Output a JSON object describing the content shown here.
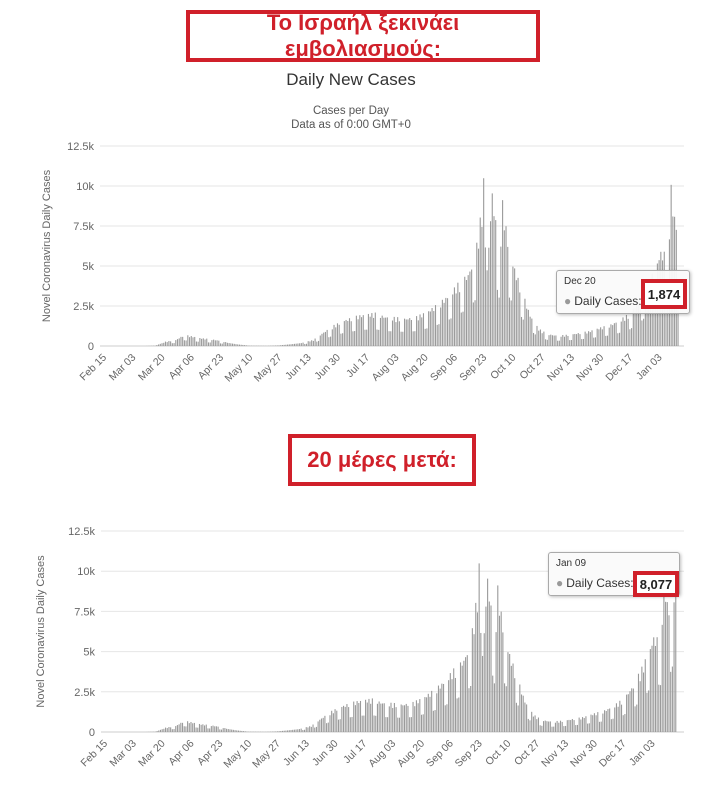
{
  "banners": {
    "top": "Το Ισραήλ ξεκινάει εμβολιασμούς:",
    "middle": "20 μέρες μετά:"
  },
  "chart_top": {
    "title": "Daily New Cases",
    "subtitle_line1": "Cases per Day",
    "subtitle_line2": "Data as of 0:00 GMT+0",
    "tooltip": {
      "date": "Dec 20",
      "label": "Daily Cases:",
      "value": "1,874"
    }
  },
  "chart_bottom": {
    "tooltip": {
      "date": "Jan 09",
      "label": "Daily Cases:",
      "value": "8,077"
    }
  },
  "chart_data": [
    {
      "type": "bar",
      "title": "Daily New Cases",
      "subtitle": "Cases per Day",
      "ylabel": "Novel Coronavirus Daily Cases",
      "ylim": [
        0,
        12500
      ],
      "yticks": [
        "0",
        "2.5k",
        "5k",
        "7.5k",
        "10k",
        "12.5k"
      ],
      "xticks": [
        "Feb 15",
        "Mar 03",
        "Mar 20",
        "Apr 06",
        "Apr 23",
        "May 10",
        "May 27",
        "Jun 13",
        "Jun 30",
        "Jul 17",
        "Aug 03",
        "Aug 20",
        "Sep 06",
        "Sep 23",
        "Oct 10",
        "Oct 27",
        "Nov 13",
        "Nov 30",
        "Dec 17",
        "Jan 03"
      ],
      "x_start": "Feb 15",
      "x_end": "Jan 06",
      "anchors": [
        [
          0,
          0
        ],
        [
          14,
          0
        ],
        [
          24,
          0
        ],
        [
          30,
          20
        ],
        [
          36,
          250
        ],
        [
          42,
          350
        ],
        [
          47,
          650
        ],
        [
          52,
          550
        ],
        [
          57,
          450
        ],
        [
          62,
          400
        ],
        [
          67,
          320
        ],
        [
          72,
          200
        ],
        [
          78,
          100
        ],
        [
          85,
          20
        ],
        [
          95,
          10
        ],
        [
          102,
          40
        ],
        [
          108,
          100
        ],
        [
          115,
          180
        ],
        [
          122,
          350
        ],
        [
          128,
          800
        ],
        [
          134,
          1200
        ],
        [
          140,
          1500
        ],
        [
          146,
          1700
        ],
        [
          152,
          1850
        ],
        [
          158,
          1900
        ],
        [
          164,
          1700
        ],
        [
          170,
          1650
        ],
        [
          176,
          1600
        ],
        [
          182,
          1700
        ],
        [
          188,
          2000
        ],
        [
          194,
          2400
        ],
        [
          200,
          2900
        ],
        [
          206,
          3600
        ],
        [
          212,
          4200
        ],
        [
          216,
          5200
        ],
        [
          220,
          8000
        ],
        [
          222,
          11200
        ],
        [
          224,
          6000
        ],
        [
          226,
          9000
        ],
        [
          230,
          5500
        ],
        [
          232,
          8300
        ],
        [
          236,
          5500
        ],
        [
          240,
          4200
        ],
        [
          244,
          3000
        ],
        [
          248,
          1800
        ],
        [
          253,
          1000
        ],
        [
          258,
          700
        ],
        [
          264,
          600
        ],
        [
          270,
          650
        ],
        [
          276,
          750
        ],
        [
          282,
          850
        ],
        [
          288,
          1050
        ],
        [
          294,
          1200
        ],
        [
          300,
          1500
        ],
        [
          306,
          1900
        ],
        [
          312,
          2700
        ],
        [
          318,
          3900
        ],
        [
          324,
          5500
        ],
        [
          328,
          5300
        ],
        [
          330,
          9200
        ],
        [
          332,
          7500
        ],
        [
          334,
          6800
        ]
      ],
      "tooltip": {
        "date": "Dec 20",
        "value": 1874
      }
    },
    {
      "type": "bar",
      "ylabel": "Novel Coronavirus Daily Cases",
      "ylim": [
        0,
        12500
      ],
      "yticks": [
        "0",
        "2.5k",
        "5k",
        "7.5k",
        "10k",
        "12.5k"
      ],
      "xticks": [
        "Feb 15",
        "Mar 03",
        "Mar 20",
        "Apr 06",
        "Apr 23",
        "May 10",
        "May 27",
        "Jun 13",
        "Jun 30",
        "Jul 17",
        "Aug 03",
        "Aug 20",
        "Sep 06",
        "Sep 23",
        "Oct 10",
        "Oct 27",
        "Nov 13",
        "Nov 30",
        "Dec 17",
        "Jan 03"
      ],
      "x_start": "Feb 15",
      "x_end": "Jan 09",
      "anchors": [
        [
          0,
          0
        ],
        [
          14,
          0
        ],
        [
          24,
          0
        ],
        [
          30,
          20
        ],
        [
          36,
          250
        ],
        [
          42,
          350
        ],
        [
          47,
          650
        ],
        [
          52,
          550
        ],
        [
          57,
          450
        ],
        [
          62,
          400
        ],
        [
          67,
          320
        ],
        [
          72,
          200
        ],
        [
          78,
          100
        ],
        [
          85,
          20
        ],
        [
          95,
          10
        ],
        [
          102,
          40
        ],
        [
          108,
          100
        ],
        [
          115,
          180
        ],
        [
          122,
          350
        ],
        [
          128,
          800
        ],
        [
          134,
          1200
        ],
        [
          140,
          1500
        ],
        [
          146,
          1700
        ],
        [
          152,
          1850
        ],
        [
          158,
          1900
        ],
        [
          164,
          1700
        ],
        [
          170,
          1650
        ],
        [
          176,
          1600
        ],
        [
          182,
          1700
        ],
        [
          188,
          2000
        ],
        [
          194,
          2400
        ],
        [
          200,
          2900
        ],
        [
          206,
          3600
        ],
        [
          212,
          4200
        ],
        [
          216,
          5200
        ],
        [
          220,
          8000
        ],
        [
          222,
          11200
        ],
        [
          224,
          6000
        ],
        [
          226,
          9000
        ],
        [
          230,
          5500
        ],
        [
          232,
          8300
        ],
        [
          236,
          5500
        ],
        [
          240,
          4200
        ],
        [
          244,
          3000
        ],
        [
          248,
          1800
        ],
        [
          253,
          1000
        ],
        [
          258,
          700
        ],
        [
          264,
          600
        ],
        [
          270,
          650
        ],
        [
          276,
          750
        ],
        [
          282,
          850
        ],
        [
          288,
          1050
        ],
        [
          294,
          1200
        ],
        [
          300,
          1500
        ],
        [
          306,
          1900
        ],
        [
          312,
          2700
        ],
        [
          318,
          3900
        ],
        [
          324,
          5500
        ],
        [
          328,
          5300
        ],
        [
          330,
          9200
        ],
        [
          332,
          7500
        ],
        [
          334,
          6800
        ],
        [
          336,
          8000
        ],
        [
          337,
          8077
        ]
      ],
      "tooltip": {
        "date": "Jan 09",
        "value": 8077
      }
    }
  ]
}
